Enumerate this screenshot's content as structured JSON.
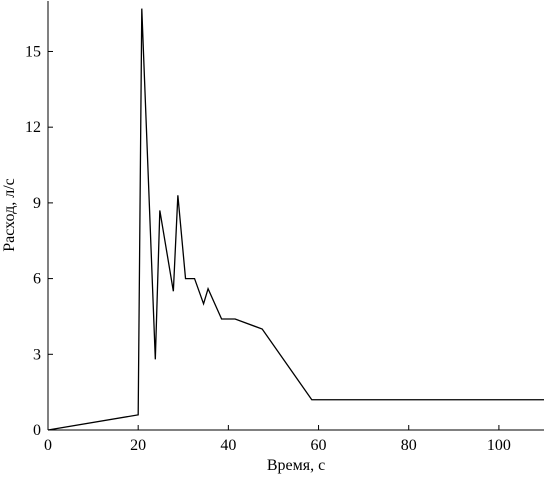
{
  "chart_data": {
    "type": "line",
    "x_label": "Время, с",
    "y_label": "Расход, л/с",
    "series": [
      {
        "color": "#000000",
        "x": [
          0,
          20,
          20.8,
          23.8,
          24.8,
          27.8,
          28.8,
          30.5,
          32.5,
          34.5,
          35.5,
          38.5,
          41.5,
          47.5,
          58.5,
          110
        ],
        "values": [
          0,
          0.6,
          16.7,
          2.8,
          8.7,
          5.5,
          9.3,
          6.0,
          6.0,
          5.0,
          5.6,
          4.4,
          4.4,
          4.0,
          1.2,
          1.2
        ]
      }
    ],
    "xlim": [
      0,
      110
    ],
    "ylim": [
      0,
      17
    ],
    "xticks": [
      0,
      20,
      40,
      60,
      80,
      100
    ],
    "yticks": [
      0,
      3,
      6,
      9,
      12,
      15
    ]
  }
}
